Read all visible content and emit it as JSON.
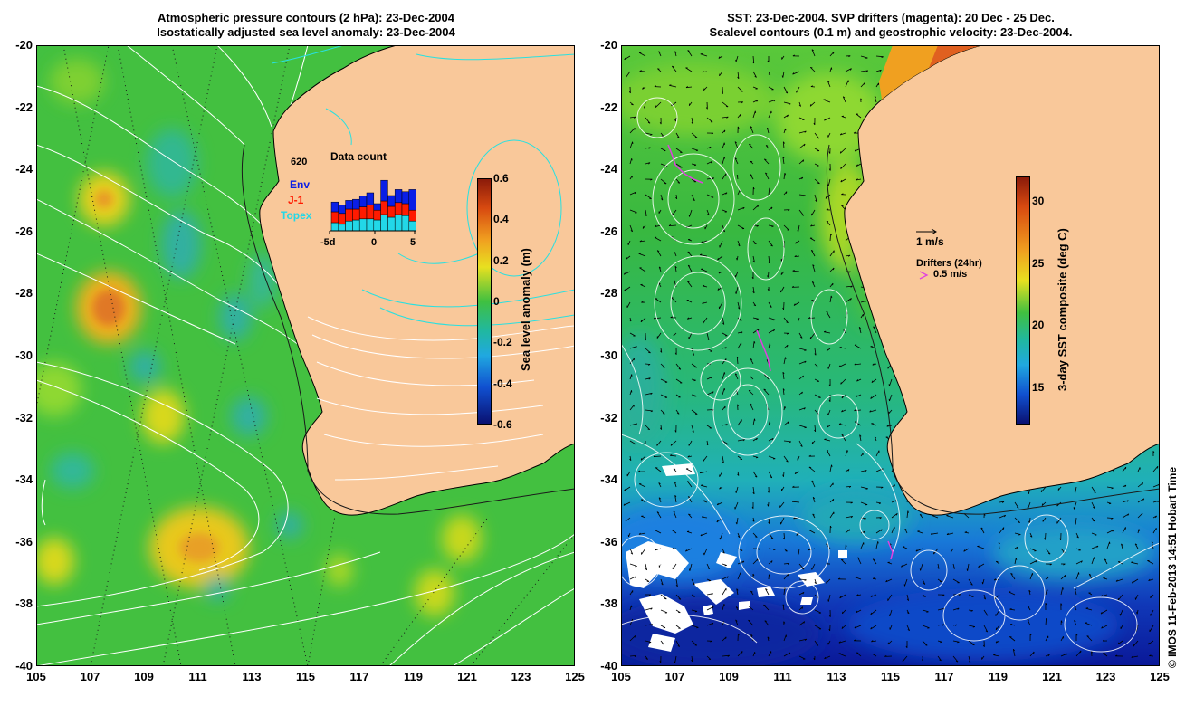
{
  "left_panel": {
    "title_line1": "Atmospheric pressure contours (2 hPa): 23-Dec-2004",
    "title_line2": "Isostatically adjusted sea level anomaly: 23-Dec-2004",
    "colorbar": {
      "label": "Sea level anomaly (m)",
      "ticks": [
        "0.6",
        "0.4",
        "0.2",
        "0",
        "-0.2",
        "-0.4",
        "-0.6"
      ],
      "range": [
        -0.6,
        0.6
      ]
    },
    "inset": {
      "title": "Data count",
      "max_label": "620",
      "legend": [
        {
          "name": "Env",
          "color": "#0a1ee6"
        },
        {
          "name": "J-1",
          "color": "#ff1a00"
        },
        {
          "name": "Topex",
          "color": "#22d8e8"
        }
      ],
      "x_ticks": [
        "-5d",
        "0",
        "5"
      ],
      "bars": [
        {
          "topex": 0.15,
          "j1": 0.2,
          "env": 0.18
        },
        {
          "topex": 0.12,
          "j1": 0.2,
          "env": 0.15
        },
        {
          "topex": 0.18,
          "j1": 0.22,
          "env": 0.16
        },
        {
          "topex": 0.2,
          "j1": 0.2,
          "env": 0.18
        },
        {
          "topex": 0.22,
          "j1": 0.22,
          "env": 0.2
        },
        {
          "topex": 0.22,
          "j1": 0.26,
          "env": 0.22
        },
        {
          "topex": 0.2,
          "j1": 0.18,
          "env": 0.12
        },
        {
          "topex": 0.3,
          "j1": 0.25,
          "env": 0.38
        },
        {
          "topex": 0.25,
          "j1": 0.2,
          "env": 0.2
        },
        {
          "topex": 0.3,
          "j1": 0.22,
          "env": 0.24
        },
        {
          "topex": 0.28,
          "j1": 0.22,
          "env": 0.22
        },
        {
          "topex": 0.18,
          "j1": 0.2,
          "env": 0.38
        }
      ]
    }
  },
  "right_panel": {
    "title_line1": "SST: 23-Dec-2004. SVP drifters (magenta): 20 Dec - 25 Dec.",
    "title_line2": "Sealevel contours (0.1 m) and geostrophic velocity: 23-Dec-2004.",
    "colorbar": {
      "label": "3-day SST composite (deg C)",
      "ticks": [
        "30",
        "25",
        "20",
        "15"
      ],
      "range": [
        12,
        32
      ]
    },
    "velocity_scale_label": "1 m/s",
    "drifters_label": "Drifters (24hr)",
    "drifters_scale_label": "0.5 m/s"
  },
  "axes": {
    "x_ticks": [
      "105",
      "107",
      "109",
      "111",
      "113",
      "115",
      "117",
      "119",
      "121",
      "123",
      "125"
    ],
    "y_ticks": [
      "-20",
      "-22",
      "-24",
      "-26",
      "-28",
      "-30",
      "-32",
      "-34",
      "-36",
      "-38",
      "-40"
    ]
  },
  "credit": "© IMOS 11-Feb-2013 14:51 Hobart Time",
  "colors": {
    "land": "#f9c89a",
    "ocean_green": "#3bbf3b",
    "coast": "#000000",
    "pressure_contour": "#ffffff",
    "land_contour": "#29e0e0",
    "drifter": "#e040e0"
  }
}
